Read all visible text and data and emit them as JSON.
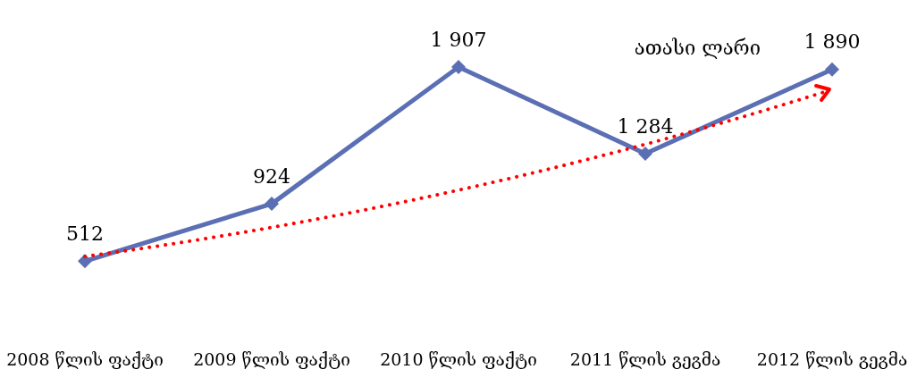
{
  "chart_data": {
    "type": "line",
    "categories": [
      "2008 წლის ფაქტი",
      "2009 წლის ფაქტი",
      "2010 წლის ფაქტი",
      "2011 წლის გეგმა",
      "2012 წლის გეგმა"
    ],
    "series": [
      {
        "color": "#5b6fb4",
        "marker": "diamond",
        "line_style": "solid",
        "values": [
          512,
          924,
          1907,
          1284,
          1890
        ],
        "value_labels": [
          "512",
          "924",
          "1 907",
          "1 284",
          "1 890"
        ]
      }
    ],
    "annotations": [
      "ათასი ლარი"
    ],
    "grid": false
  }
}
